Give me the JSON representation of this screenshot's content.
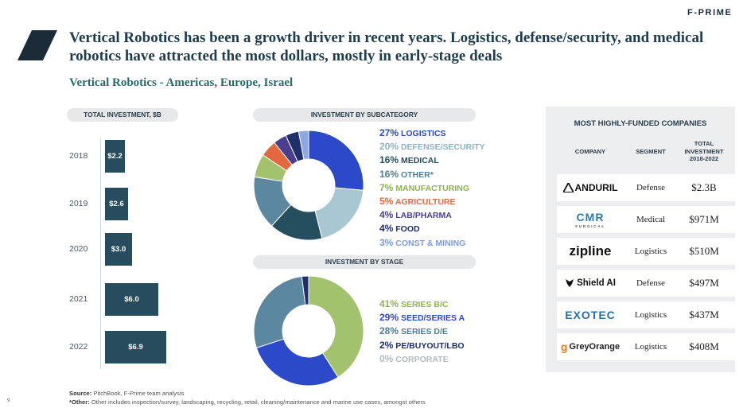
{
  "brand": "F-PRIME",
  "title": "Vertical Robotics has been a growth driver in recent years. Logistics, defense/security, and medical robotics have attracted the most dollars, mostly in early-stage deals",
  "subtitle": "Vertical Robotics - Americas, Europe, Israel",
  "chart_data": [
    {
      "type": "bar",
      "orientation": "horizontal",
      "title": "TOTAL INVESTMENT, $B",
      "categories": [
        "2018",
        "2019",
        "2020",
        "2021",
        "2022"
      ],
      "values": [
        2.2,
        2.6,
        3.0,
        6.0,
        6.9
      ],
      "labels": [
        "$2.2",
        "$2.6",
        "$3.0",
        "$6.0",
        "$6.9"
      ],
      "color": "#274c5e"
    },
    {
      "type": "pie",
      "donut": true,
      "title": "INVESTMENT BY SUBCATEGORY",
      "slices": [
        {
          "name": "LOGISTICS",
          "value": 27,
          "color": "#2b49c9"
        },
        {
          "name": "DEFENSE/SECURITY",
          "value": 20,
          "color": "#a8c7d2"
        },
        {
          "name": "MEDICAL",
          "value": 16,
          "color": "#254f5e"
        },
        {
          "name": "OTHER*",
          "value": 16,
          "color": "#5b87a0"
        },
        {
          "name": "MANUFACTURING",
          "value": 7,
          "color": "#a3c26e"
        },
        {
          "name": "AGRICULTURE",
          "value": 5,
          "color": "#e4683f"
        },
        {
          "name": "LAB/PHARMA",
          "value": 4,
          "color": "#4a3f8f"
        },
        {
          "name": "FOOD",
          "value": 4,
          "color": "#1e2f6b"
        },
        {
          "name": "CONST & MINING",
          "value": 3,
          "color": "#8ea9e0"
        }
      ]
    },
    {
      "type": "pie",
      "donut": true,
      "title": "INVESTMENT BY STAGE",
      "slices": [
        {
          "name": "SERIES B/C",
          "value": 41,
          "color": "#a3c26e"
        },
        {
          "name": "SEED/SERIES A",
          "value": 29,
          "color": "#2b49c9"
        },
        {
          "name": "SERIES D/E",
          "value": 28,
          "color": "#5b87a0"
        },
        {
          "name": "PE/BUYOUT/LBO",
          "value": 2,
          "color": "#1e2f6b"
        },
        {
          "name": "CORPORATE",
          "value": 0,
          "color": "#b9c3c9"
        }
      ]
    }
  ],
  "legend_sub": [
    {
      "pct": "27%",
      "name": "LOGISTICS",
      "color": "#2b49c9"
    },
    {
      "pct": "20%",
      "name": "DEFENSE/SECURITY",
      "color": "#8fb3c5"
    },
    {
      "pct": "16%",
      "name": "MEDICAL",
      "color": "#254f5e"
    },
    {
      "pct": "16%",
      "name": "OTHER*",
      "color": "#4f7c96"
    },
    {
      "pct": "7%",
      "name": "MANUFACTURING",
      "color": "#8db352"
    },
    {
      "pct": "5%",
      "name": "AGRICULTURE",
      "color": "#e4683f"
    },
    {
      "pct": "4%",
      "name": "LAB/PHARMA",
      "color": "#4a3f8f"
    },
    {
      "pct": "4%",
      "name": "FOOD",
      "color": "#1e2f6b"
    },
    {
      "pct": "3%",
      "name": "CONST & MINING",
      "color": "#7c9be0"
    }
  ],
  "legend_stage": [
    {
      "pct": "41%",
      "name": "SERIES B/C",
      "color": "#8db352"
    },
    {
      "pct": "29%",
      "name": "SEED/SERIES A",
      "color": "#2b49c9"
    },
    {
      "pct": "28%",
      "name": "SERIES D/E",
      "color": "#4f7c96"
    },
    {
      "pct": "2%",
      "name": "PE/BUYOUT/LBO",
      "color": "#1e2f6b"
    },
    {
      "pct": "0%",
      "name": "CORPORATE",
      "color": "#b0bac0"
    }
  ],
  "companies": {
    "header": "MOST HIGHLY-FUNDED COMPANIES",
    "col_company": "COMPANY",
    "col_segment": "SEGMENT",
    "col_total": "TOTAL INVESTMENT 2018-2022",
    "rows": [
      {
        "logo": "ANDURIL",
        "segment": "Defense",
        "amount": "$2.3B"
      },
      {
        "logo": "CMR SURGICAL",
        "segment": "Medical",
        "amount": "$971M"
      },
      {
        "logo": "zipline",
        "segment": "Logistics",
        "amount": "$510M"
      },
      {
        "logo": "Shield AI",
        "segment": "Defense",
        "amount": "$497M"
      },
      {
        "logo": "EXOTEC",
        "segment": "Logistics",
        "amount": "$437M"
      },
      {
        "logo": "GreyOrange",
        "segment": "Logistics",
        "amount": "$408M"
      }
    ]
  },
  "footer": {
    "source_label": "Source:",
    "source_text": " PitchBook, F-Prime team analysis",
    "other_label": "*Other:",
    "other_text": " Other includes inspection/survey, landscaping, recycling, retail, cleaning/maintenance and marine use cases, amongst others",
    "page": "9"
  }
}
